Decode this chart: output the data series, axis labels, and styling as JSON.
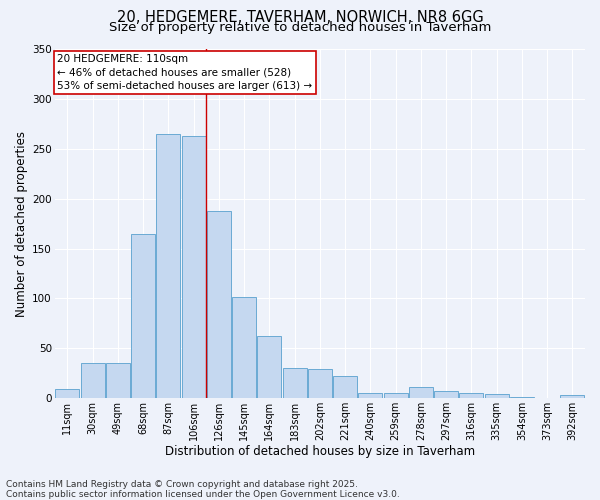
{
  "title_line1": "20, HEDGEMERE, TAVERHAM, NORWICH, NR8 6GG",
  "title_line2": "Size of property relative to detached houses in Taverham",
  "xlabel": "Distribution of detached houses by size in Taverham",
  "ylabel": "Number of detached properties",
  "bar_labels": [
    "11sqm",
    "30sqm",
    "49sqm",
    "68sqm",
    "87sqm",
    "106sqm",
    "126sqm",
    "145sqm",
    "164sqm",
    "183sqm",
    "202sqm",
    "221sqm",
    "240sqm",
    "259sqm",
    "278sqm",
    "297sqm",
    "316sqm",
    "335sqm",
    "354sqm",
    "373sqm",
    "392sqm"
  ],
  "bar_values": [
    9,
    35,
    35,
    165,
    265,
    263,
    188,
    101,
    62,
    30,
    29,
    22,
    5,
    5,
    11,
    7,
    5,
    4,
    1,
    0,
    3
  ],
  "bar_color": "#c5d8f0",
  "bar_edge_color": "#6aaad4",
  "vline_x": 5.5,
  "vline_color": "#cc0000",
  "annotation_title": "20 HEDGEMERE: 110sqm",
  "annotation_line2": "← 46% of detached houses are smaller (528)",
  "annotation_line3": "53% of semi-detached houses are larger (613) →",
  "annotation_box_facecolor": "#ffffff",
  "annotation_box_edgecolor": "#cc0000",
  "ylim": [
    0,
    350
  ],
  "yticks": [
    0,
    50,
    100,
    150,
    200,
    250,
    300,
    350
  ],
  "footer_line1": "Contains HM Land Registry data © Crown copyright and database right 2025.",
  "footer_line2": "Contains public sector information licensed under the Open Government Licence v3.0.",
  "bg_color": "#eef2fa",
  "plot_bg_color": "#eef2fa",
  "grid_color": "#ffffff",
  "title_fontsize": 10.5,
  "subtitle_fontsize": 9.5,
  "axis_label_fontsize": 8.5,
  "tick_fontsize": 7,
  "annotation_fontsize": 7.5,
  "footer_fontsize": 6.5
}
